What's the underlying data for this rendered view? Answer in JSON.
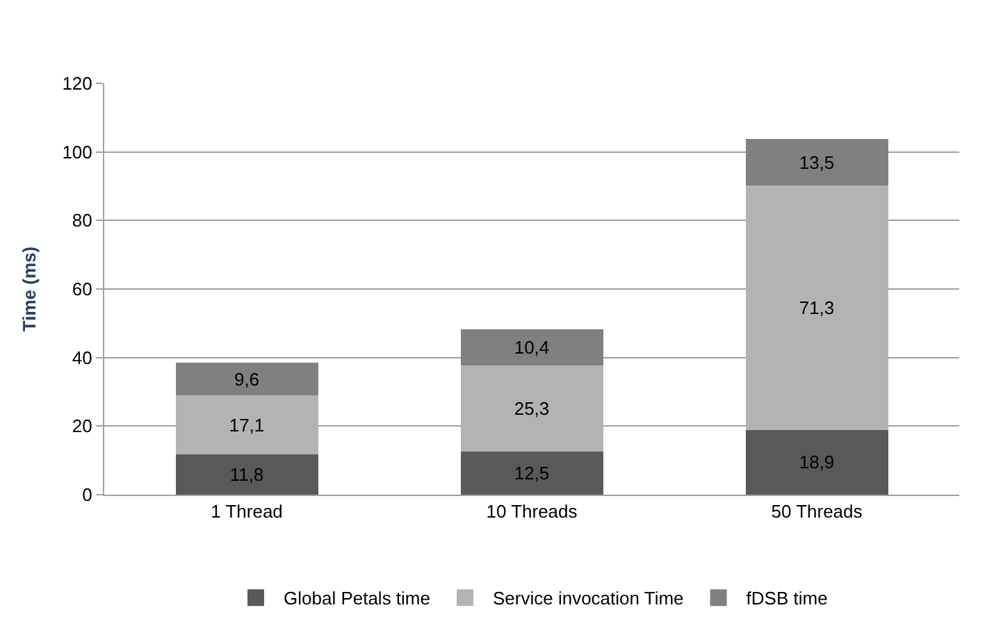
{
  "chart_data": {
    "type": "bar",
    "stacked": true,
    "ylabel": "Time (ms)",
    "categories": [
      "1 Thread",
      "10 Threads",
      "50 Threads"
    ],
    "series": [
      {
        "name": "Global Petals time",
        "color": "#595959",
        "values": [
          11.8,
          12.5,
          18.9
        ],
        "value_labels": [
          "11,8",
          "12,5",
          "18,9"
        ]
      },
      {
        "name": "Service invocation Time",
        "color": "#b3b3b3",
        "values": [
          17.1,
          25.3,
          71.3
        ],
        "value_labels": [
          "17,1",
          "25,3",
          "71,3"
        ]
      },
      {
        "name": "fDSB time",
        "color": "#808080",
        "values": [
          9.6,
          10.4,
          13.5
        ],
        "value_labels": [
          "9,6",
          "10,4",
          "13,5"
        ]
      }
    ],
    "ylim": [
      0,
      120
    ],
    "yticks": [
      0,
      20,
      40,
      60,
      80,
      100,
      120
    ],
    "grid": "y",
    "legend": "bottom"
  }
}
